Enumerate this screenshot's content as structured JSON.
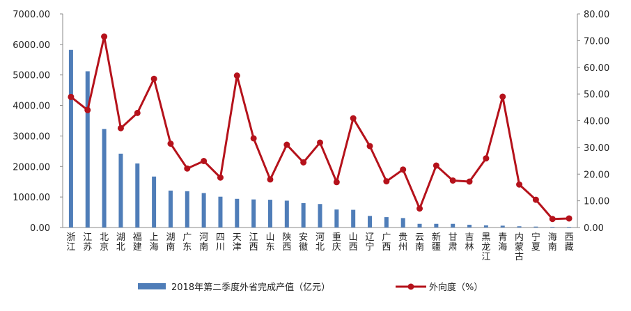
{
  "chart_data": {
    "type": "bar",
    "categories": [
      "浙江",
      "江苏",
      "北京",
      "湖北",
      "福建",
      "上海",
      "湖南",
      "广东",
      "河南",
      "四川",
      "天津",
      "江西",
      "山东",
      "陕西",
      "安徽",
      "河北",
      "重庆",
      "山西",
      "辽宁",
      "广西",
      "贵州",
      "云南",
      "新疆",
      "甘肃",
      "吉林",
      "黑龙江",
      "青海",
      "内蒙古",
      "宁夏",
      "海南",
      "西藏"
    ],
    "series": [
      {
        "name": "2018年第二季度外省完成产值（亿元）",
        "type": "bar",
        "axis": "left",
        "color": "#4f7db8",
        "values": [
          5820,
          5120,
          3230,
          2420,
          2100,
          1670,
          1210,
          1190,
          1130,
          1010,
          940,
          920,
          910,
          880,
          800,
          770,
          590,
          580,
          380,
          340,
          310,
          120,
          120,
          120,
          90,
          70,
          60,
          40,
          30,
          20,
          20
        ]
      },
      {
        "name": "外向度（%）",
        "type": "line",
        "axis": "right",
        "color": "#b5121b",
        "values": [
          48.9,
          44.0,
          71.5,
          37.2,
          42.9,
          55.7,
          31.4,
          22.1,
          24.9,
          18.7,
          56.9,
          33.4,
          18.0,
          31.0,
          24.4,
          31.8,
          17.0,
          40.9,
          30.5,
          17.3,
          21.7,
          7.1,
          23.2,
          17.6,
          17.2,
          25.9,
          49.0,
          16.1,
          10.4,
          3.2,
          3.4
        ]
      }
    ],
    "y_left": {
      "ylim": [
        0,
        7000
      ],
      "ticks": [
        "0.00",
        "1000.00",
        "2000.00",
        "3000.00",
        "4000.00",
        "5000.00",
        "6000.00",
        "7000.00"
      ]
    },
    "y_right": {
      "ylim": [
        0,
        80
      ],
      "ticks": [
        "0.00",
        "10.00",
        "20.00",
        "30.00",
        "40.00",
        "50.00",
        "60.00",
        "70.00",
        "80.00"
      ]
    },
    "grid": false,
    "legend_position": "bottom"
  }
}
